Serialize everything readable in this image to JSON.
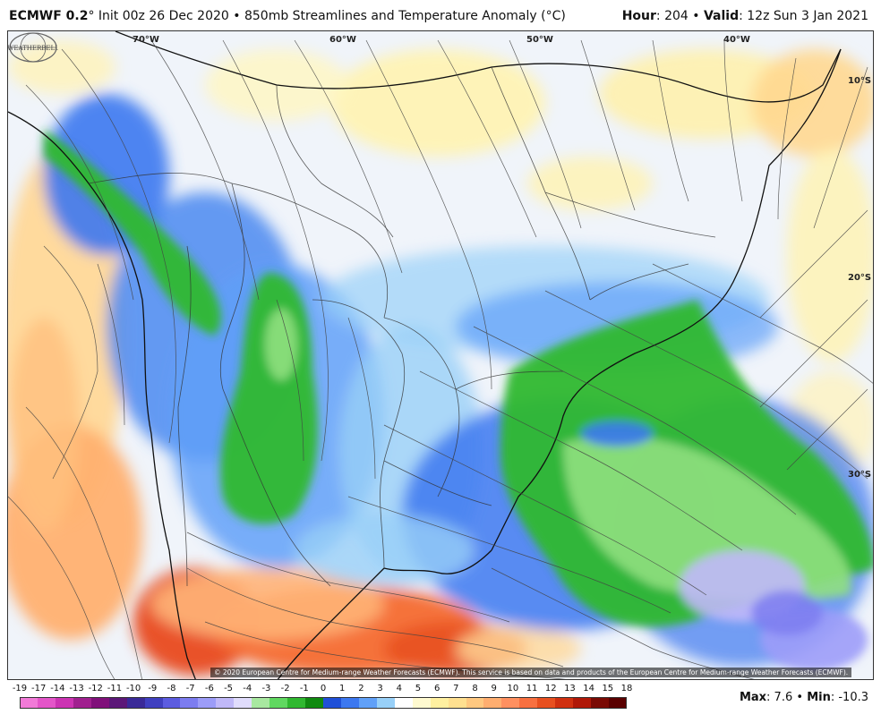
{
  "header": {
    "model": "ECMWF 0.2",
    "degree": "°",
    "init": "Init 00z 26 Dec 2020",
    "bullet": "•",
    "product": "850mb Streamlines and Temperature Anomaly (°C)",
    "hour_label": "Hour",
    "hour_value": ": 204",
    "valid_label": "Valid",
    "valid_value": ": 12z Sun 3 Jan 2021"
  },
  "map": {
    "longitude_labels": [
      "70°W",
      "60°W",
      "50°W",
      "40°W"
    ],
    "latitude_labels": [
      "10°S",
      "20°S",
      "30°S"
    ],
    "copyright": "© 2020 European Centre for Medium-range Weather Forecasts (ECMWF). This service is based on data and products of the European Centre for Medium-range Weather Forecasts (ECMWF).",
    "logo_text": "WEATHERBELL",
    "logo_icon": "weatherbell-globe-icon"
  },
  "colorbar": {
    "labels": [
      "-19",
      "-17",
      "-14",
      "-13",
      "-12",
      "-11",
      "-10",
      "-9",
      "-8",
      "-7",
      "-6",
      "-5",
      "-4",
      "-3",
      "-2",
      "-1",
      "0",
      "1",
      "2",
      "3",
      "4",
      "5",
      "6",
      "7",
      "8",
      "9",
      "10",
      "11",
      "12",
      "13",
      "14",
      "15",
      "18"
    ],
    "colors": [
      "#f27ad8",
      "#e455c9",
      "#cc33b3",
      "#a0208f",
      "#80107a",
      "#5c1878",
      "#3a2a98",
      "#4040c0",
      "#5c5ce0",
      "#7c7cf0",
      "#9c9cf8",
      "#c0b8f8",
      "#e0dcfc",
      "#a8e8a0",
      "#60d860",
      "#30b830",
      "#108a10",
      "#2050d8",
      "#3c78f0",
      "#60a0f8",
      "#98d0f8",
      "#ffffff",
      "#fffad0",
      "#fff0a0",
      "#ffe090",
      "#ffc880",
      "#ffae70",
      "#ff9060",
      "#f87040",
      "#e85020",
      "#d03010",
      "#b01808",
      "#7a0a04",
      "#5a0000"
    ]
  },
  "footer": {
    "max_label": "Max",
    "max_value": ": 7.6",
    "bullet": "•",
    "min_label": "Min",
    "min_value": ": -10.3"
  }
}
